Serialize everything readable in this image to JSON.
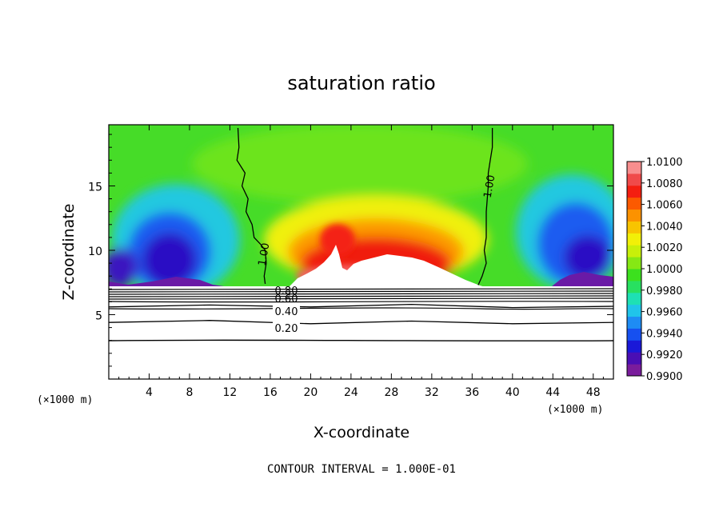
{
  "chart_data": {
    "type": "heatmap",
    "title": "saturation ratio",
    "xlabel": "X-coordinate",
    "ylabel": "Z-coordinate",
    "x_unit": "(×1000 m)",
    "x_unit_right": "(×1000 m)",
    "xlim": [
      0,
      50
    ],
    "ylim": [
      0,
      19.75
    ],
    "xticks": [
      4,
      8,
      12,
      16,
      20,
      24,
      28,
      32,
      36,
      40,
      44,
      48
    ],
    "yticks": [
      5,
      10,
      15
    ],
    "colorbar": {
      "labels": [
        "1.0100",
        "1.0080",
        "1.0060",
        "1.0040",
        "1.0020",
        "1.0000",
        "0.9980",
        "0.9960",
        "0.9940",
        "0.9920",
        "0.9900"
      ],
      "min": 0.99,
      "max": 1.01,
      "colors": [
        "#7a1c9c",
        "#4a0eb4",
        "#1a18d8",
        "#1650f0",
        "#1e8cf4",
        "#20c4ea",
        "#1ee0b4",
        "#28e060",
        "#3ce01e",
        "#86e814",
        "#c8f00a",
        "#f2f008",
        "#f8c400",
        "#fc9200",
        "#fc5a00",
        "#f41e10",
        "#f04a4a",
        "#f88e8e"
      ]
    },
    "contour_lines": [
      {
        "label": "1.00",
        "x": [
          12.8,
          12.9,
          12.7,
          13.5,
          13.2,
          13.8,
          13.6,
          14.2,
          14.4,
          15.0,
          15.5,
          15.6,
          15.4,
          15.5
        ],
        "z": [
          19.5,
          18.0,
          17.0,
          16.0,
          15.0,
          14.0,
          13.0,
          12.0,
          11.0,
          10.5,
          10.0,
          9.0,
          8.0,
          7.4
        ]
      },
      {
        "label": "1.00",
        "x": [
          38.0,
          38.0,
          37.8,
          37.6,
          37.6,
          37.4,
          37.4,
          37.2,
          37.4,
          37.0,
          36.6
        ],
        "z": [
          19.5,
          18.0,
          17.0,
          16.0,
          15.0,
          13.0,
          11.0,
          10.0,
          9.0,
          8.0,
          7.3
        ]
      },
      {
        "label": "0.20",
        "x": [
          0,
          10,
          20,
          30,
          40,
          50
        ],
        "z": [
          4.4,
          4.55,
          4.3,
          4.5,
          4.3,
          4.4
        ]
      },
      {
        "label": "0.40",
        "x": [
          0,
          10,
          20,
          30,
          40,
          50
        ],
        "z": [
          5.6,
          5.75,
          5.6,
          5.8,
          5.55,
          5.65
        ]
      }
    ],
    "contour_label_extra": [
      "0.80",
      "0.60"
    ],
    "annotation": "CONTOUR INTERVAL = 1.000E-01"
  }
}
